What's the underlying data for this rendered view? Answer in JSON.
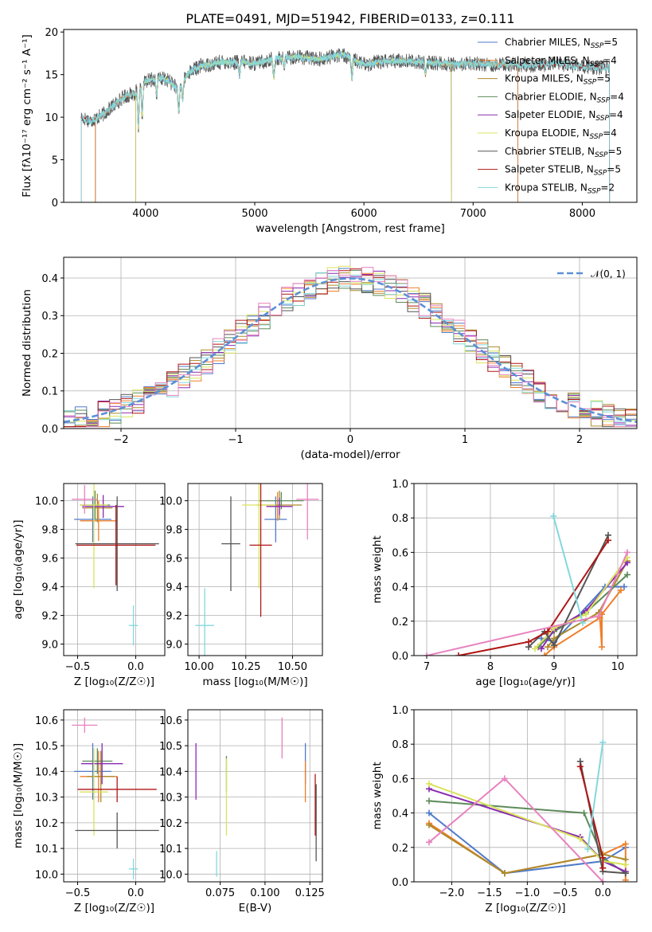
{
  "title": "PLATE=0491, MJD=51942, FIBERID=0133, z=0.111",
  "colors": {
    "Chabrier MILES": "#4f7ac9",
    "Salpeter MILES": "#ef7f2b",
    "Kroupa MILES": "#ad8a2a",
    "Chabrier ELODIE": "#5c8b5a",
    "Salpeter ELODIE": "#8a2ab0",
    "Kroupa ELODIE": "#d9e35c",
    "Chabrier STELIB": "#555555",
    "Salpeter STELIB": "#b01616",
    "Kroupa STELIB": "#83d8dc",
    "pink": "#e882bf",
    "normal": "#5b8fd6"
  },
  "chart_data": [
    {
      "id": "spectrum",
      "type": "line",
      "title": "PLATE=0491, MJD=51942, FIBERID=0133, z=0.111",
      "xlabel": "wavelength [Angstrom, rest frame]",
      "ylabel": "Flux [fλ10⁻¹⁷ erg cm⁻² s⁻¹ A⁻¹]",
      "xlim": [
        3250,
        8500
      ],
      "ylim": [
        0,
        20.3
      ],
      "xticks": [
        "4000",
        "5000",
        "6000",
        "7000",
        "8000"
      ],
      "yticks": [
        "0",
        "5",
        "10",
        "15",
        "20"
      ],
      "grid": false,
      "legend_position": "upper right",
      "legend": [
        {
          "name": "Chabrier MILES",
          "nssp": "5"
        },
        {
          "name": "Salpeter MILES",
          "nssp": "4"
        },
        {
          "name": "Kroupa MILES",
          "nssp": "5"
        },
        {
          "name": "Chabrier ELODIE",
          "nssp": "4"
        },
        {
          "name": "Salpeter ELODIE",
          "nssp": "4"
        },
        {
          "name": "Kroupa ELODIE",
          "nssp": "4"
        },
        {
          "name": "Chabrier STELIB",
          "nssp": "5"
        },
        {
          "name": "Salpeter STELIB",
          "nssp": "5"
        },
        {
          "name": "Kroupa STELIB",
          "nssp": "2"
        }
      ],
      "continuum": {
        "x": [
          3400,
          3500,
          3600,
          3700,
          3800,
          3900,
          4000,
          4100,
          4200,
          4300,
          4400,
          4500,
          4600,
          4700,
          4800,
          4900,
          5000,
          5200,
          5400,
          5600,
          5800,
          6000,
          6200,
          6400,
          6600,
          6800,
          7000,
          7200,
          7400,
          7600,
          7800,
          8000,
          8200
        ],
        "y": [
          10.0,
          9.6,
          10.2,
          11.3,
          12.4,
          12.8,
          14.2,
          14.6,
          14.4,
          13.4,
          15.3,
          16.0,
          16.2,
          16.5,
          16.4,
          16.5,
          16.3,
          16.9,
          17.1,
          16.8,
          17.4,
          16.2,
          16.6,
          16.6,
          16.4,
          16.2,
          16.3,
          16.2,
          16.2,
          16.1,
          16.3,
          15.9,
          15.8
        ]
      },
      "dips": [
        {
          "x": 3934,
          "depth": 4.5
        },
        {
          "x": 3969,
          "depth": 3.5
        },
        {
          "x": 4101,
          "depth": 2.0
        },
        {
          "x": 4304,
          "depth": 3.0
        },
        {
          "x": 4340,
          "depth": 2.0
        },
        {
          "x": 4861,
          "depth": 1.6
        },
        {
          "x": 5175,
          "depth": 2.2
        },
        {
          "x": 5270,
          "depth": 1.2
        },
        {
          "x": 5890,
          "depth": 2.4
        },
        {
          "x": 6563,
          "depth": 1.5
        }
      ]
    },
    {
      "id": "residuals",
      "type": "line",
      "xlabel": "(data-model)/error",
      "ylabel": "Normed distribution",
      "xlim": [
        -2.5,
        2.5
      ],
      "ylim": [
        0,
        0.455
      ],
      "xticks": [
        "−2",
        "−1",
        "0",
        "1",
        "2"
      ],
      "yticks": [
        "0.0",
        "0.1",
        "0.2",
        "0.3",
        "0.4"
      ],
      "grid": true,
      "legend_position": "upper right",
      "legend": [
        "𝒩(0, 1)"
      ]
    },
    {
      "id": "age-vs-z",
      "type": "scatter",
      "xlabel": "Z [log₁₀(Z/Z☉)]",
      "ylabel": "age  [log₁₀(age/yr)]",
      "xlim": [
        -0.62,
        0.25
      ],
      "ylim": [
        8.92,
        10.12
      ],
      "xticks": [
        "−0.5",
        "0.0"
      ],
      "yticks": [
        "9.0",
        "9.2",
        "9.4",
        "9.6",
        "9.8",
        "10.0"
      ],
      "points": [
        {
          "s": "Chabrier MILES",
          "x": -0.37,
          "xerr": 0.16,
          "y": 9.87,
          "yerr": 0.16
        },
        {
          "s": "Salpeter MILES",
          "x": -0.32,
          "xerr": 0.16,
          "y": 9.86,
          "yerr": 0.14
        },
        {
          "s": "Kroupa MILES",
          "x": -0.33,
          "xerr": 0.13,
          "y": 9.95,
          "yerr": 0.1
        },
        {
          "s": "Chabrier ELODIE",
          "x": -0.35,
          "xerr": 0.13,
          "y": 9.97,
          "yerr": 0.1
        },
        {
          "s": "Salpeter ELODIE",
          "x": -0.28,
          "xerr": 0.18,
          "y": 9.96,
          "yerr": 0.08
        },
        {
          "s": "Kroupa ELODIE",
          "x": -0.36,
          "xerr": 0.12,
          "y": 9.97,
          "yerr": 0.58
        },
        {
          "s": "Chabrier STELIB",
          "x": -0.16,
          "xerr": 0.36,
          "y": 9.7,
          "yerr": 0.33
        },
        {
          "s": "Salpeter STELIB",
          "x": -0.17,
          "xerr": 0.34,
          "y": 9.69,
          "yerr": 0.28
        },
        {
          "s": "Kroupa STELIB",
          "x": -0.02,
          "xerr": 0.04,
          "y": 9.13,
          "yerr": 0.14
        },
        {
          "s": "pink",
          "x": -0.44,
          "xerr": 0.11,
          "y": 10.01,
          "yerr": 0.1
        }
      ]
    },
    {
      "id": "age-vs-mass",
      "type": "scatter",
      "xlabel": "mass [log₁₀(M/M☉)]",
      "ylabel": "",
      "xlim": [
        9.94,
        10.66
      ],
      "ylim": [
        8.92,
        10.12
      ],
      "xticks": [
        "10.00",
        "10.25",
        "10.50"
      ],
      "yticks": [
        "9.0",
        "9.2",
        "9.4",
        "9.6",
        "9.8",
        "10.0"
      ],
      "points": [
        {
          "s": "Chabrier MILES",
          "x": 10.41,
          "xerr": 0.06,
          "y": 9.87,
          "yerr": 0.16
        },
        {
          "s": "Salpeter MILES",
          "x": 10.42,
          "xerr": 0.04,
          "y": 9.96,
          "yerr": 0.1
        },
        {
          "s": "Kroupa MILES",
          "x": 10.43,
          "xerr": 0.12,
          "y": 9.97,
          "yerr": 0.1
        },
        {
          "s": "Chabrier ELODIE",
          "x": 10.44,
          "xerr": 0.12,
          "y": 10.0,
          "yerr": 0.06
        },
        {
          "s": "Salpeter ELODIE",
          "x": 10.43,
          "xerr": 0.07,
          "y": 9.96,
          "yerr": 0.06
        },
        {
          "s": "Kroupa ELODIE",
          "x": 10.32,
          "xerr": 0.09,
          "y": 9.97,
          "yerr": 0.58
        },
        {
          "s": "Chabrier STELIB",
          "x": 10.17,
          "xerr": 0.05,
          "y": 9.7,
          "yerr": 0.33
        },
        {
          "s": "Salpeter STELIB",
          "x": 10.33,
          "xerr": 0.06,
          "y": 9.69,
          "yerr": 0.5
        },
        {
          "s": "Kroupa STELIB",
          "x": 10.03,
          "xerr": 0.05,
          "y": 9.13,
          "yerr": 0.26
        },
        {
          "s": "pink",
          "x": 10.58,
          "xerr": 0.06,
          "y": 10.01,
          "yerr": 0.28
        }
      ]
    },
    {
      "id": "weight-vs-age",
      "type": "line",
      "xlabel": "age  [log₁₀(age/yr)]",
      "ylabel": "mass weight",
      "xlim": [
        6.8,
        10.3
      ],
      "ylim": [
        0,
        1
      ],
      "xticks": [
        "7",
        "8",
        "9",
        "10"
      ],
      "yticks": [
        "0.0",
        "0.2",
        "0.4",
        "0.6",
        "0.8",
        "1.0"
      ],
      "grid": true,
      "series": [
        {
          "s": "Chabrier MILES",
          "x": [
            8.8,
            9.0,
            9.8,
            10.1
          ],
          "y": [
            0.1,
            0.08,
            0.4,
            0.4
          ]
        },
        {
          "s": "Salpeter MILES",
          "x": [
            8.85,
            9.0,
            9.72,
            9.75,
            9.75,
            10.05
          ],
          "y": [
            0.0,
            0.05,
            0.22,
            0.05,
            0.24,
            0.38
          ]
        },
        {
          "s": "Kroupa MILES",
          "x": [
            8.9,
            9.0,
            9.7,
            10.15
          ],
          "y": [
            0.05,
            0.1,
            0.25,
            0.55
          ]
        },
        {
          "s": "Chabrier ELODIE",
          "x": [
            8.75,
            9.0,
            9.5,
            10.15
          ],
          "y": [
            0.05,
            0.14,
            0.25,
            0.47
          ]
        },
        {
          "s": "Salpeter ELODIE",
          "x": [
            8.8,
            9.0,
            9.5,
            10.15
          ],
          "y": [
            0.04,
            0.15,
            0.26,
            0.54
          ]
        },
        {
          "s": "Kroupa ELODIE",
          "x": [
            8.7,
            9.0,
            9.5,
            10.15
          ],
          "y": [
            0.04,
            0.16,
            0.24,
            0.57
          ]
        },
        {
          "s": "Chabrier STELIB",
          "x": [
            8.6,
            8.85,
            9.0,
            9.85
          ],
          "y": [
            0.05,
            0.14,
            0.06,
            0.7
          ]
        },
        {
          "s": "Salpeter STELIB",
          "x": [
            7.5,
            8.6,
            8.9,
            9.85
          ],
          "y": [
            0.0,
            0.08,
            0.14,
            0.67
          ]
        },
        {
          "s": "Kroupa STELIB",
          "x": [
            8.99,
            9.45
          ],
          "y": [
            0.81,
            0.19
          ]
        },
        {
          "s": "pink",
          "x": [
            7.0,
            9.7,
            10.15
          ],
          "y": [
            0.0,
            0.23,
            0.6
          ]
        }
      ]
    },
    {
      "id": "mass-vs-z",
      "type": "scatter",
      "xlabel": "Z [log₁₀(Z/Z☉)]",
      "ylabel": "mass [log₁₀(M/M☉)]",
      "xlim": [
        -0.62,
        0.25
      ],
      "ylim": [
        9.97,
        10.64
      ],
      "xticks": [
        "−0.5",
        "0.0"
      ],
      "yticks": [
        "10.0",
        "10.1",
        "10.2",
        "10.3",
        "10.4",
        "10.5",
        "10.6"
      ],
      "points": [
        {
          "s": "Chabrier MILES",
          "x": -0.37,
          "xerr": 0.16,
          "y": 10.4,
          "yerr": 0.11
        },
        {
          "s": "Salpeter MILES",
          "x": -0.32,
          "xerr": 0.16,
          "y": 10.38,
          "yerr": 0.1
        },
        {
          "s": "Kroupa MILES",
          "x": -0.3,
          "xerr": 0.12,
          "y": 10.38,
          "yerr": 0.1
        },
        {
          "s": "Chabrier ELODIE",
          "x": -0.33,
          "xerr": 0.13,
          "y": 10.44,
          "yerr": 0.05
        },
        {
          "s": "Salpeter ELODIE",
          "x": -0.29,
          "xerr": 0.18,
          "y": 10.43,
          "yerr": 0.08
        },
        {
          "s": "Kroupa ELODIE",
          "x": -0.36,
          "xerr": 0.12,
          "y": 10.32,
          "yerr": 0.17
        },
        {
          "s": "Chabrier STELIB",
          "x": -0.16,
          "xerr": 0.36,
          "y": 10.17,
          "yerr": 0.07
        },
        {
          "s": "Salpeter STELIB",
          "x": -0.16,
          "xerr": 0.34,
          "y": 10.33,
          "yerr": 0.05
        },
        {
          "s": "Kroupa STELIB",
          "x": -0.02,
          "xerr": 0.04,
          "y": 10.02,
          "yerr": 0.04
        },
        {
          "s": "pink",
          "x": -0.44,
          "xerr": 0.11,
          "y": 10.58,
          "yerr": 0.03
        }
      ]
    },
    {
      "id": "mass-vs-ebv",
      "type": "scatter",
      "xlabel": "E(B-V)",
      "ylabel": "",
      "xlim": [
        0.057,
        0.132
      ],
      "ylim": [
        9.97,
        10.64
      ],
      "xticks": [
        "0.075",
        "0.100",
        "0.125"
      ],
      "yticks": [
        "10.0",
        "10.1",
        "10.2",
        "10.3",
        "10.4",
        "10.5",
        "10.6"
      ],
      "points": [
        {
          "s": "Chabrier MILES",
          "x": 0.1225,
          "xerr": 0,
          "y": 10.43,
          "yerr": 0.08
        },
        {
          "s": "Salpeter MILES",
          "x": 0.1225,
          "xerr": 0,
          "y": 10.36,
          "yerr": 0.08
        },
        {
          "s": "Salpeter ELODIE",
          "x": 0.0615,
          "xerr": 0,
          "y": 10.4,
          "yerr": 0.11
        },
        {
          "s": "Chabrier ELODIE",
          "x": 0.0785,
          "xerr": 0,
          "y": 10.39,
          "yerr": 0.07
        },
        {
          "s": "Kroupa ELODIE",
          "x": 0.0785,
          "xerr": 0,
          "y": 10.3,
          "yerr": 0.15
        },
        {
          "s": "pink",
          "x": 0.1095,
          "xerr": 0,
          "y": 10.53,
          "yerr": 0.08
        },
        {
          "s": "Salpeter STELIB",
          "x": 0.128,
          "xerr": 0,
          "y": 10.27,
          "yerr": 0.12
        },
        {
          "s": "Chabrier STELIB",
          "x": 0.1285,
          "xerr": 0,
          "y": 10.2,
          "yerr": 0.15
        },
        {
          "s": "Kroupa STELIB",
          "x": 0.073,
          "xerr": 0,
          "y": 10.04,
          "yerr": 0.05
        }
      ]
    },
    {
      "id": "weight-vs-z",
      "type": "line",
      "xlabel": "Z [log₁₀(Z/Z☉)]",
      "ylabel": "mass weight",
      "xlim": [
        -2.5,
        0.45
      ],
      "ylim": [
        0,
        1
      ],
      "xticks": [
        "−2.0",
        "−1.5",
        "−1.0",
        "−0.5",
        "0.0"
      ],
      "yticks": [
        "0.0",
        "0.2",
        "0.4",
        "0.6",
        "0.8",
        "1.0"
      ],
      "grid": true,
      "series": [
        {
          "s": "Chabrier MILES",
          "x": [
            -2.3,
            -1.3,
            0.0,
            0.3
          ],
          "y": [
            0.4,
            0.05,
            0.12,
            0.2
          ]
        },
        {
          "s": "Salpeter MILES",
          "x": [
            -2.3,
            -1.3,
            0.0,
            0.3,
            0.3
          ],
          "y": [
            0.34,
            0.05,
            0.16,
            0.22,
            0.01
          ]
        },
        {
          "s": "Kroupa MILES",
          "x": [
            -2.3,
            -1.3,
            0.0,
            0.3
          ],
          "y": [
            0.33,
            0.05,
            0.16,
            0.13
          ]
        },
        {
          "s": "Chabrier ELODIE",
          "x": [
            -2.3,
            -0.25,
            0.0,
            0.3
          ],
          "y": [
            0.47,
            0.4,
            0.14,
            0.05
          ]
        },
        {
          "s": "Salpeter ELODIE",
          "x": [
            -2.3,
            -0.3,
            0.0,
            0.3
          ],
          "y": [
            0.54,
            0.26,
            0.12,
            0.06
          ]
        },
        {
          "s": "Kroupa ELODIE",
          "x": [
            -2.3,
            -0.3,
            0.0,
            0.3
          ],
          "y": [
            0.57,
            0.25,
            0.12,
            0.1
          ]
        },
        {
          "s": "Chabrier STELIB",
          "x": [
            -0.3,
            0.0,
            0.3
          ],
          "y": [
            0.7,
            0.06,
            0.05
          ]
        },
        {
          "s": "Salpeter STELIB",
          "x": [
            -0.3,
            0.0,
            0.0
          ],
          "y": [
            0.67,
            0.14,
            0.08
          ]
        },
        {
          "s": "Kroupa STELIB",
          "x": [
            -0.2,
            0.0
          ],
          "y": [
            0.19,
            0.81
          ]
        },
        {
          "s": "pink",
          "x": [
            -2.3,
            -1.3,
            0.0
          ],
          "y": [
            0.23,
            0.6,
            0.0
          ]
        }
      ]
    }
  ]
}
